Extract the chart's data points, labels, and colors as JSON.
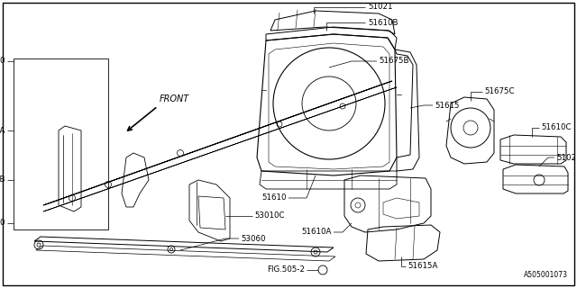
{
  "bg_color": "#ffffff",
  "line_color": "#000000",
  "fig_ref": "FIG.505-2",
  "catalog_ref": "A505001073",
  "front_label": "FRONT"
}
